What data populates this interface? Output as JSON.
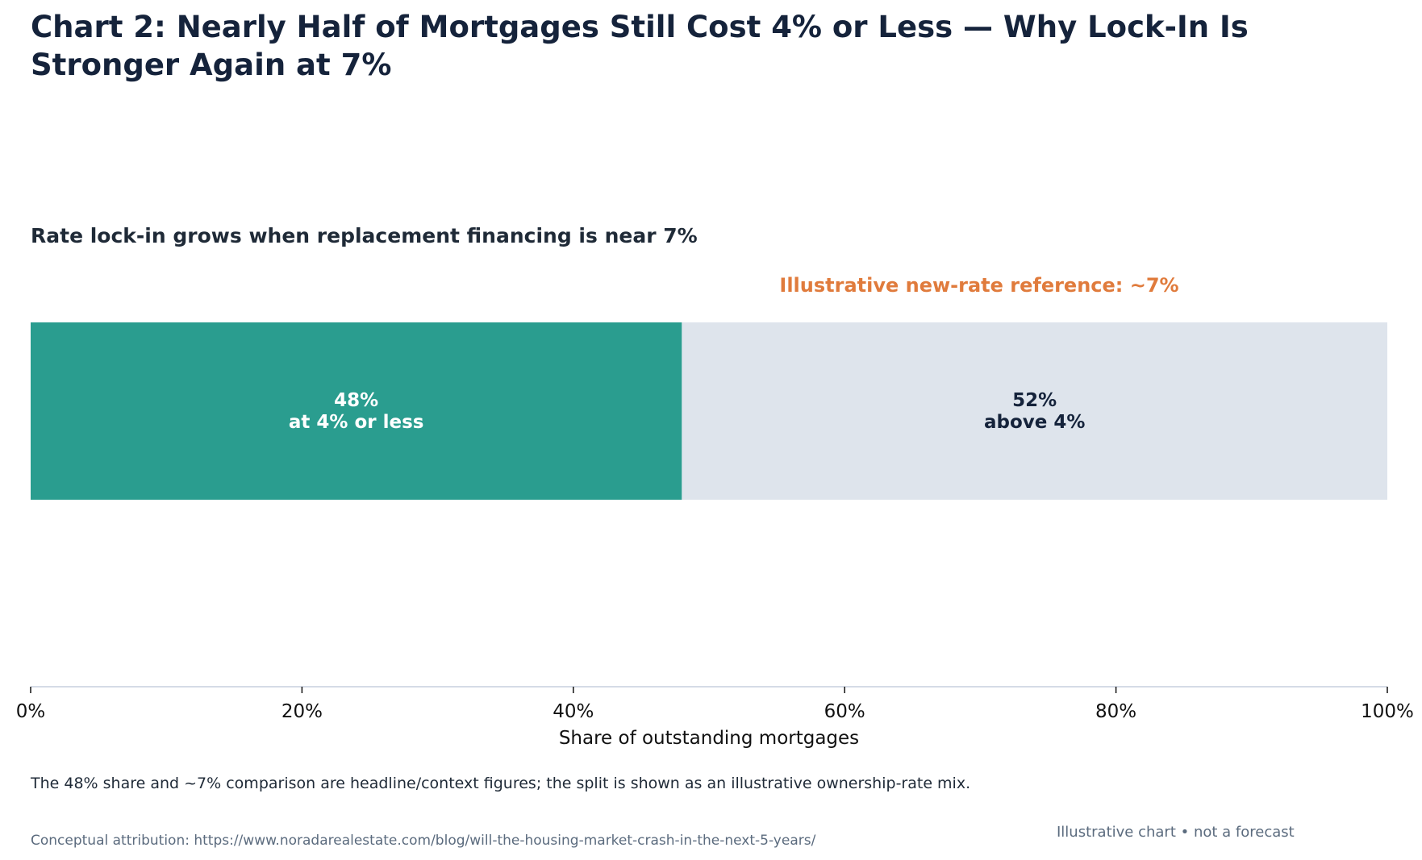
{
  "chart_data": {
    "type": "bar",
    "orientation": "horizontal",
    "stacked": true,
    "title": "Chart 2: Nearly Half of Mortgages Still Cost 4% or Less — Why Lock-In Is Stronger Again at 7%",
    "subtitle": "Rate lock-in grows when replacement financing is near 7%",
    "xlabel": "Share of outstanding mortgages",
    "xlim": [
      0,
      100
    ],
    "x_ticks": [
      "0%",
      "20%",
      "40%",
      "60%",
      "80%",
      "100%"
    ],
    "grid": false,
    "segments": [
      {
        "value": 48,
        "label_value": "48%",
        "label_text": "at 4% or less",
        "color": "#2a9d8f",
        "label_color": "#ffffff"
      },
      {
        "value": 52,
        "label_value": "52%",
        "label_text": "above 4%",
        "color": "#dee4ec",
        "label_color": "#15233b"
      }
    ],
    "annotation": {
      "text": "Illustrative new-rate reference: ~7%",
      "color": "#e07b3c"
    }
  },
  "footnote": "The 48% share and ~7% comparison are headline/context figures; the split is shown as an illustrative ownership-rate mix.",
  "attribution": "Conceptual attribution: https://www.noradarealestate.com/blog/will-the-housing-market-crash-in-the-next-5-years/",
  "disclaimer": "Illustrative chart • not a forecast"
}
